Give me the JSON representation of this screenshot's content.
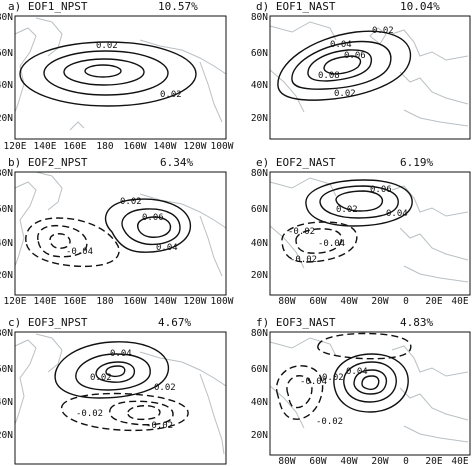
{
  "panels": [
    {
      "id": "a",
      "title": "a) EOF1_NPST",
      "variance": "10.57%",
      "x_ticks": [
        "120E",
        "140E",
        "160E",
        "180",
        "160W",
        "140W",
        "120W",
        "100W"
      ],
      "y_ticks": [
        "20N",
        "40N",
        "60N",
        "80N"
      ],
      "contour_labels": [
        "0.02",
        "0.02"
      ]
    },
    {
      "id": "d",
      "title": "d) EOF1_NAST",
      "variance": "10.04%",
      "x_ticks": [],
      "y_ticks": [
        "20N",
        "40N",
        "60N",
        "80N"
      ],
      "contour_labels": [
        "0.02",
        "0.04",
        "0.06",
        "0.08",
        "0.02"
      ]
    },
    {
      "id": "b",
      "title": "b) EOF2_NPST",
      "variance": "6.34%",
      "x_ticks": [
        "120E",
        "140E",
        "160E",
        "180",
        "160W",
        "140W",
        "120W",
        "100W"
      ],
      "y_ticks": [
        "20N",
        "40N",
        "60N",
        "80N"
      ],
      "contour_labels": [
        "0.02",
        "0.06",
        "0.04",
        "-0.04"
      ]
    },
    {
      "id": "e",
      "title": "e) EOF2_NAST",
      "variance": "6.19%",
      "x_ticks": [
        "80W",
        "60W",
        "40W",
        "20W",
        "0",
        "20E",
        "40E"
      ],
      "y_ticks": [
        "20N",
        "40N",
        "60N",
        "80N"
      ],
      "contour_labels": [
        "0.06",
        "0.02",
        "0.04",
        "-0.02",
        "-0.04",
        "-0.02"
      ]
    },
    {
      "id": "c",
      "title": "c) EOF3_NPST",
      "variance": "4.67%",
      "x_ticks": [],
      "y_ticks": [
        "20N",
        "40N",
        "60N",
        "80N"
      ],
      "contour_labels": [
        "0.04",
        "0.02",
        "0.02",
        "-0.02",
        "-0.02"
      ]
    },
    {
      "id": "f",
      "title": "f) EOF3_NAST",
      "variance": "4.83%",
      "x_ticks": [
        "80W",
        "60W",
        "40W",
        "20W",
        "0",
        "20E",
        "40E"
      ],
      "y_ticks": [
        "20N",
        "40N",
        "60N",
        "80N"
      ],
      "contour_labels": [
        "-0.04",
        "0.02",
        "0.04",
        "-0.02"
      ]
    }
  ]
}
